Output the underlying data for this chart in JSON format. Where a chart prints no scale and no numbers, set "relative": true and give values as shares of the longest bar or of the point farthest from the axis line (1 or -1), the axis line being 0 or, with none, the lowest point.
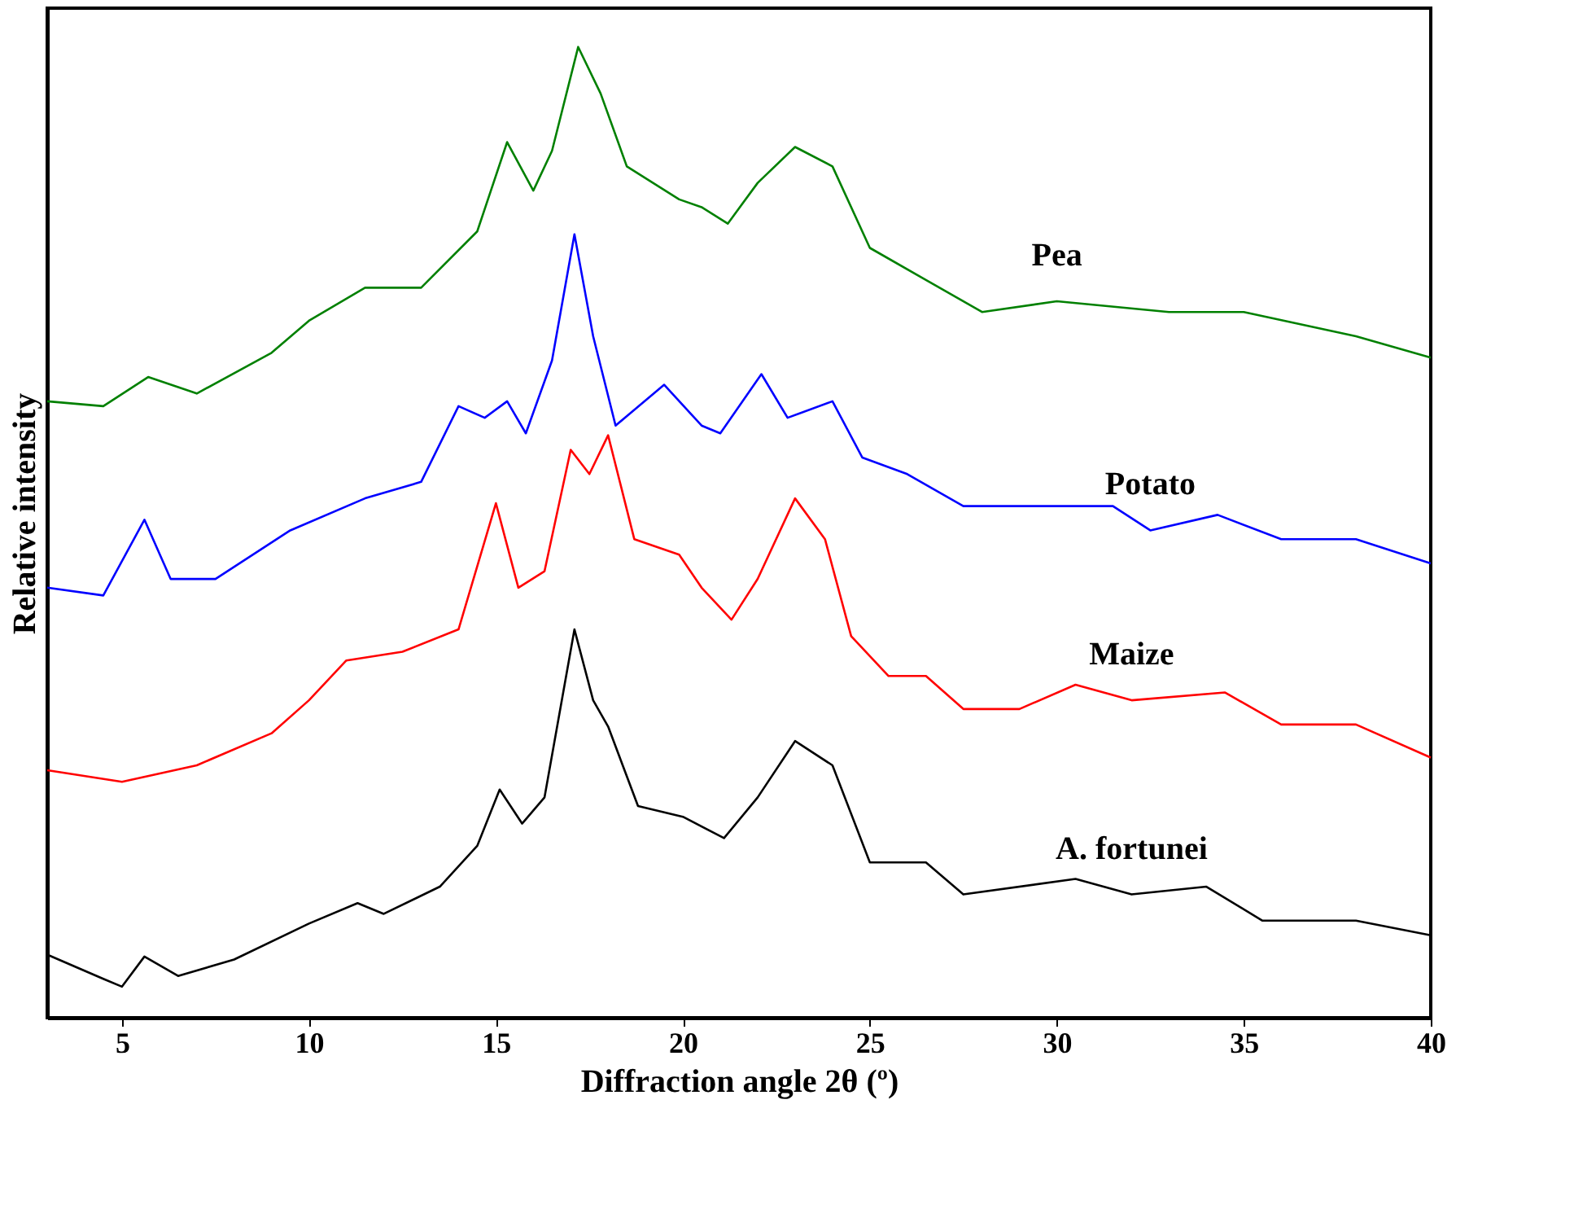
{
  "chart_data": {
    "type": "line",
    "relative": true,
    "xlabel": "Diffraction angle 2θ (º)",
    "ylabel": "Relative intensity",
    "xlim": [
      3,
      40
    ],
    "xticks": [
      5,
      10,
      15,
      20,
      25,
      30,
      35,
      40
    ],
    "grid": false,
    "marker": "none",
    "line_style": "solid",
    "series": [
      {
        "name": "Pea",
        "color": "#008000",
        "x": [
          3,
          4.5,
          5.7,
          7,
          9,
          10,
          11.5,
          13,
          14.5,
          15.3,
          16,
          16.5,
          17.2,
          17.8,
          18.5,
          19.9,
          20.5,
          21.2,
          22,
          23,
          24,
          25,
          26.5,
          28,
          30,
          33,
          35,
          38,
          40
        ],
        "values": [
          0.635,
          0.63,
          0.66,
          0.643,
          0.685,
          0.718,
          0.752,
          0.752,
          0.81,
          0.902,
          0.852,
          0.893,
          1.0,
          0.952,
          0.877,
          0.843,
          0.835,
          0.818,
          0.86,
          0.897,
          0.877,
          0.793,
          0.76,
          0.727,
          0.738,
          0.727,
          0.727,
          0.702,
          0.68
        ]
      },
      {
        "name": "Potato",
        "color": "#0000ff",
        "x": [
          3,
          4.5,
          5.6,
          6.3,
          7.5,
          9.5,
          11.5,
          13,
          14,
          14.7,
          15.3,
          15.8,
          16.5,
          17.1,
          17.6,
          18.2,
          19.5,
          20.5,
          21,
          22.1,
          22.8,
          24,
          24.8,
          26,
          27.5,
          30,
          31.5,
          32.5,
          34.3,
          36,
          38,
          40
        ],
        "values": [
          0.443,
          0.435,
          0.513,
          0.452,
          0.452,
          0.502,
          0.535,
          0.552,
          0.63,
          0.618,
          0.635,
          0.602,
          0.677,
          0.807,
          0.702,
          0.61,
          0.652,
          0.61,
          0.602,
          0.663,
          0.618,
          0.635,
          0.577,
          0.56,
          0.527,
          0.527,
          0.527,
          0.502,
          0.518,
          0.493,
          0.493,
          0.468
        ]
      },
      {
        "name": "Maize",
        "color": "#ff0000",
        "x": [
          3,
          5,
          7,
          9,
          10,
          11,
          12.5,
          14,
          15,
          15.6,
          16.3,
          17,
          17.5,
          18,
          18.7,
          19.9,
          20.5,
          21.3,
          22,
          23,
          23.8,
          24.5,
          25.5,
          26.5,
          27.5,
          29,
          30.5,
          32,
          34.5,
          36,
          38,
          40
        ],
        "values": [
          0.255,
          0.243,
          0.26,
          0.293,
          0.327,
          0.368,
          0.377,
          0.4,
          0.53,
          0.443,
          0.46,
          0.585,
          0.56,
          0.6,
          0.493,
          0.477,
          0.443,
          0.41,
          0.452,
          0.535,
          0.493,
          0.393,
          0.352,
          0.352,
          0.318,
          0.318,
          0.343,
          0.327,
          0.335,
          0.302,
          0.302,
          0.268
        ]
      },
      {
        "name": "A. fortunei",
        "color": "#000000",
        "x": [
          3,
          4.5,
          5,
          5.6,
          6.5,
          8,
          10,
          11.3,
          12,
          13.5,
          14.5,
          15.1,
          15.7,
          16.3,
          17.1,
          17.6,
          18,
          18.8,
          20,
          21.1,
          22,
          23,
          24,
          25,
          26.5,
          27.5,
          30.5,
          32,
          34,
          35.5,
          38,
          40
        ],
        "values": [
          0.065,
          0.04,
          0.032,
          0.063,
          0.043,
          0.06,
          0.097,
          0.118,
          0.107,
          0.135,
          0.177,
          0.235,
          0.2,
          0.227,
          0.4,
          0.327,
          0.3,
          0.218,
          0.207,
          0.185,
          0.227,
          0.285,
          0.26,
          0.16,
          0.16,
          0.127,
          0.143,
          0.127,
          0.135,
          0.1,
          0.1,
          0.085
        ]
      }
    ]
  }
}
